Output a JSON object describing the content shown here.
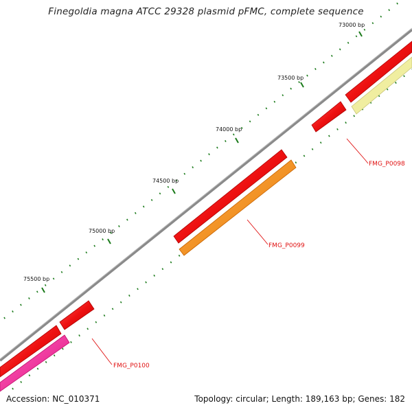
{
  "title": "Finegoldia magna ATCC 29328 plasmid pFMC, complete sequence",
  "footer": {
    "accession": "Accession: NC_010371",
    "summary": "Topology: circular; Length: 189,163 bp; Genes: 182"
  },
  "colors": {
    "backbone": "#8a8a8a",
    "forward_gene": "#ee1111",
    "reverse_gene_orange": "#ff8c00",
    "reverse_gene_pink": "#ff2299",
    "reverse_gene_pale": "#f0eea0",
    "tick": "#1a7a1a",
    "label": "#e01010"
  },
  "ticks": [
    {
      "label": "73000 bp"
    },
    {
      "label": "73500 bp"
    },
    {
      "label": "74000 bp"
    },
    {
      "label": "74500 bp"
    },
    {
      "label": "75000 bp"
    },
    {
      "label": "75500 bp"
    }
  ],
  "genes": [
    {
      "name": "FMG_P0098"
    },
    {
      "name": "FMG_P0099"
    },
    {
      "name": "FMG_P0100"
    }
  ]
}
